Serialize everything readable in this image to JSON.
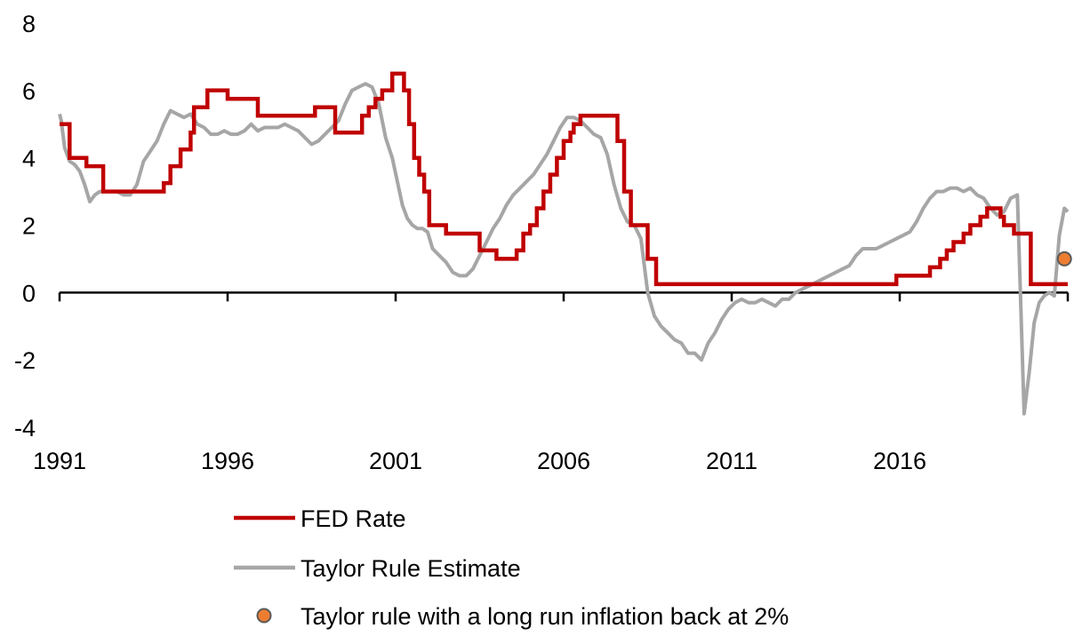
{
  "colors": {
    "fed": "#C00000",
    "taylor": "#A6A6A6",
    "dot_fill": "#ED7D31",
    "dot_stroke": "#595959",
    "axis": "#000000"
  },
  "chart_data": {
    "type": "line",
    "xlim": [
      1991.0,
      2021.0
    ],
    "ylim": [
      -4,
      8
    ],
    "y_ticks": [
      -4,
      -2,
      0,
      2,
      4,
      6,
      8
    ],
    "y_tick_labels": [
      "-4",
      "-2",
      "0",
      "2",
      "4",
      "6",
      "8"
    ],
    "x_ticks": [
      1991,
      1996,
      2001,
      2006,
      2011,
      2016
    ],
    "x_tick_labels": [
      "1991",
      "1996",
      "2001",
      "2006",
      "2011",
      "2016"
    ],
    "legend_placement": "bottom",
    "grid": false,
    "series": [
      {
        "name": "FED Rate",
        "style": "step",
        "x": [
          1991.0,
          1991.1,
          1991.3,
          1991.5,
          1991.7,
          1991.8,
          1992.0,
          1992.3,
          1992.5,
          1993.5,
          1993.6,
          1993.8,
          1994.0,
          1994.1,
          1994.3,
          1994.6,
          1994.9,
          1995.0,
          1995.4,
          1995.5,
          1996.0,
          1996.4,
          1996.9,
          1997.0,
          1998.0,
          1998.6,
          1998.8,
          1999.2,
          1999.4,
          1999.7,
          2000.0,
          2000.2,
          2000.4,
          2000.6,
          2000.9,
          2001.0,
          2001.1,
          2001.25,
          2001.4,
          2001.55,
          2001.7,
          2001.85,
          2002.0,
          2002.5,
          2003.0,
          2003.5,
          2004.0,
          2004.4,
          2004.6,
          2004.8,
          2005.0,
          2005.2,
          2005.4,
          2005.6,
          2005.8,
          2006.0,
          2006.2,
          2006.3,
          2006.5,
          2006.8,
          2007.0,
          2007.3,
          2007.6,
          2007.8,
          2008.0,
          2008.2,
          2008.5,
          2008.75,
          2009.0,
          2015.0,
          2015.9,
          2016.1,
          2016.9,
          2017.2,
          2017.4,
          2017.6,
          2017.9,
          2018.1,
          2018.4,
          2018.6,
          2018.9,
          2019.0,
          2019.1,
          2019.4,
          2019.6,
          2019.9,
          2020.0,
          2020.1,
          2020.2,
          2021.0
        ],
        "values": [
          5.0,
          5.0,
          4.0,
          4.0,
          4.0,
          3.75,
          3.75,
          3.0,
          3.0,
          3.0,
          3.0,
          3.0,
          3.0,
          3.25,
          3.75,
          4.25,
          4.75,
          5.5,
          6.0,
          6.0,
          5.75,
          5.75,
          5.25,
          5.25,
          5.25,
          5.5,
          5.5,
          4.75,
          4.75,
          4.75,
          5.25,
          5.5,
          5.75,
          6.0,
          6.5,
          6.5,
          6.5,
          6.0,
          5.0,
          4.0,
          3.5,
          3.0,
          2.0,
          1.75,
          1.75,
          1.25,
          1.0,
          1.0,
          1.25,
          1.75,
          2.0,
          2.5,
          3.0,
          3.5,
          4.0,
          4.5,
          4.75,
          5.0,
          5.25,
          5.25,
          5.25,
          5.25,
          4.5,
          3.0,
          2.0,
          2.0,
          1.0,
          0.25,
          0.25,
          0.25,
          0.5,
          0.5,
          0.75,
          1.0,
          1.25,
          1.5,
          1.75,
          2.0,
          2.25,
          2.5,
          2.5,
          2.25,
          2.0,
          1.75,
          1.75,
          0.25,
          0.25,
          0.25,
          0.25,
          0.25
        ]
      },
      {
        "name": "Taylor Rule Estimate",
        "style": "line",
        "x": [
          1991.0,
          1991.05,
          1991.15,
          1991.3,
          1991.45,
          1991.6,
          1991.75,
          1991.9,
          1992.05,
          1992.2,
          1992.35,
          1992.5,
          1992.7,
          1992.9,
          1993.1,
          1993.3,
          1993.5,
          1993.7,
          1993.9,
          1994.1,
          1994.3,
          1994.5,
          1994.7,
          1994.9,
          1995.1,
          1995.3,
          1995.5,
          1995.7,
          1995.9,
          1996.1,
          1996.3,
          1996.5,
          1996.7,
          1996.9,
          1997.1,
          1997.3,
          1997.5,
          1997.7,
          1997.9,
          1998.1,
          1998.3,
          1998.5,
          1998.7,
          1998.9,
          1999.1,
          1999.3,
          1999.5,
          1999.7,
          1999.9,
          2000.1,
          2000.3,
          2000.5,
          2000.7,
          2000.9,
          2001.05,
          2001.2,
          2001.35,
          2001.5,
          2001.65,
          2001.8,
          2001.95,
          2002.1,
          2002.3,
          2002.5,
          2002.7,
          2002.9,
          2003.1,
          2003.3,
          2003.5,
          2003.7,
          2003.9,
          2004.1,
          2004.3,
          2004.5,
          2004.7,
          2004.9,
          2005.1,
          2005.3,
          2005.5,
          2005.7,
          2005.9,
          2006.1,
          2006.3,
          2006.5,
          2006.7,
          2006.9,
          2007.1,
          2007.3,
          2007.5,
          2007.7,
          2007.9,
          2008.1,
          2008.3,
          2008.5,
          2008.7,
          2008.9,
          2009.1,
          2009.3,
          2009.5,
          2009.7,
          2009.9,
          2010.1,
          2010.3,
          2010.5,
          2010.7,
          2010.9,
          2011.1,
          2011.3,
          2011.5,
          2011.7,
          2011.9,
          2012.1,
          2012.3,
          2012.5,
          2012.7,
          2012.9,
          2013.1,
          2013.3,
          2013.5,
          2013.7,
          2013.9,
          2014.1,
          2014.3,
          2014.5,
          2014.7,
          2014.9,
          2015.1,
          2015.3,
          2015.5,
          2015.7,
          2015.9,
          2016.1,
          2016.3,
          2016.5,
          2016.7,
          2016.9,
          2017.1,
          2017.3,
          2017.5,
          2017.7,
          2017.9,
          2018.1,
          2018.3,
          2018.5,
          2018.7,
          2018.9,
          2019.1,
          2019.3,
          2019.5,
          2019.7,
          2019.85,
          2020.0,
          2020.15,
          2020.3,
          2020.45,
          2020.6,
          2020.75,
          2020.9,
          2021.0
        ],
        "values": [
          5.3,
          5.1,
          4.3,
          3.9,
          3.8,
          3.6,
          3.2,
          2.7,
          2.9,
          3.0,
          3.0,
          3.0,
          3.0,
          2.9,
          2.9,
          3.2,
          3.9,
          4.2,
          4.5,
          5.0,
          5.4,
          5.3,
          5.2,
          5.3,
          5.0,
          4.9,
          4.7,
          4.7,
          4.8,
          4.7,
          4.7,
          4.8,
          5.0,
          4.8,
          4.9,
          4.9,
          4.9,
          5.0,
          4.9,
          4.8,
          4.6,
          4.4,
          4.5,
          4.7,
          4.9,
          5.1,
          5.6,
          6.0,
          6.1,
          6.2,
          6.1,
          5.6,
          4.6,
          4.0,
          3.3,
          2.6,
          2.2,
          2.0,
          1.9,
          1.9,
          1.8,
          1.3,
          1.1,
          0.9,
          0.6,
          0.5,
          0.5,
          0.7,
          1.1,
          1.5,
          1.9,
          2.2,
          2.6,
          2.9,
          3.1,
          3.3,
          3.5,
          3.8,
          4.1,
          4.5,
          4.9,
          5.2,
          5.2,
          5.1,
          4.9,
          4.7,
          4.6,
          4.1,
          3.2,
          2.5,
          2.1,
          2.0,
          1.6,
          0.0,
          -0.7,
          -1.0,
          -1.2,
          -1.4,
          -1.5,
          -1.8,
          -1.8,
          -2.0,
          -1.5,
          -1.2,
          -0.8,
          -0.5,
          -0.3,
          -0.2,
          -0.3,
          -0.3,
          -0.2,
          -0.3,
          -0.4,
          -0.2,
          -0.2,
          0.0,
          0.1,
          0.2,
          0.3,
          0.4,
          0.5,
          0.6,
          0.7,
          0.8,
          1.1,
          1.3,
          1.3,
          1.3,
          1.4,
          1.5,
          1.6,
          1.7,
          1.8,
          2.1,
          2.5,
          2.8,
          3.0,
          3.0,
          3.1,
          3.1,
          3.0,
          3.1,
          2.9,
          2.8,
          2.5,
          2.3,
          2.4,
          2.8,
          2.9,
          -3.6,
          -2.4,
          -0.9,
          -0.3,
          -0.1,
          0.0,
          -0.1,
          1.7,
          2.5,
          2.4
        ]
      },
      {
        "name": "Taylor rule with a long run inflation back at 2%",
        "style": "marker",
        "x": [
          2020.9
        ],
        "values": [
          1.0
        ]
      }
    ]
  }
}
